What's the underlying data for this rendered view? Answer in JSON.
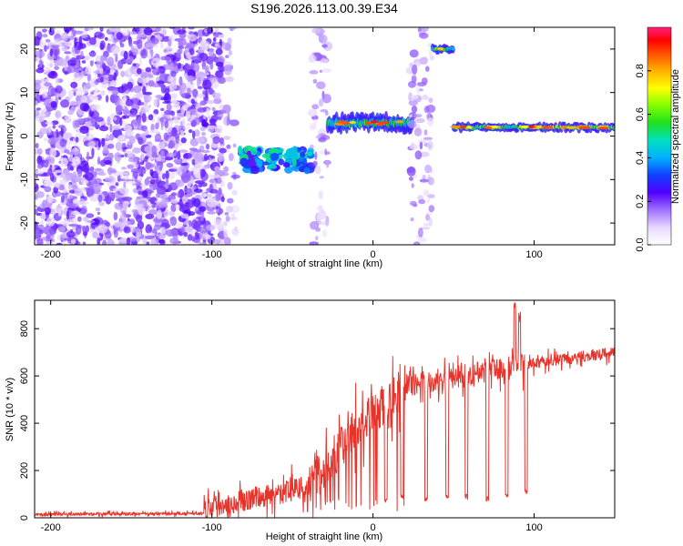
{
  "title": "S196.2026.113.00.39.E34",
  "chart_data": [
    {
      "type": "heatmap",
      "xlabel": "Height of straight line (km)",
      "ylabel": "Frequency (Hz)",
      "xlim": [
        -210,
        150
      ],
      "ylim": [
        -25,
        25
      ],
      "xticks": [
        -200,
        -100,
        0,
        100
      ],
      "yticks": [
        -20,
        -10,
        0,
        10,
        20
      ],
      "colorbar": {
        "label": "Normalized spectral amplitude",
        "range": [
          0,
          1
        ],
        "ticks": [
          "0.0",
          "0.2",
          "0.4",
          "0.6",
          "0.8"
        ]
      },
      "features": [
        {
          "name": "noise",
          "x": [
            -210,
            -93
          ],
          "y": [
            -25,
            25
          ],
          "amplitude": 0.12
        },
        {
          "name": "noise-band",
          "x": [
            -92,
            -85
          ],
          "y": [
            -25,
            25
          ],
          "amplitude": 0.1
        },
        {
          "name": "cluster",
          "x": [
            -83,
            -38
          ],
          "y": [
            -8,
            -3
          ],
          "amplitude": 0.45
        },
        {
          "name": "column",
          "x": [
            -38,
            -28
          ],
          "y": [
            -25,
            25
          ],
          "amplitude": 0.1
        },
        {
          "name": "line",
          "x": [
            -28,
            25
          ],
          "y": [
            1,
            5
          ],
          "amplitude": 0.55
        },
        {
          "name": "column",
          "x": [
            23,
            37
          ],
          "y": [
            -25,
            25
          ],
          "amplitude": 0.1
        },
        {
          "name": "line",
          "x": [
            37,
            50
          ],
          "y": [
            19,
            21
          ],
          "amplitude": 0.6
        },
        {
          "name": "line",
          "x": [
            50,
            150
          ],
          "y": [
            1,
            3
          ],
          "amplitude": 0.65
        }
      ]
    },
    {
      "type": "line",
      "xlabel": "Height of straight line (km)",
      "ylabel": "SNR (10 * v/v)",
      "xlim": [
        -210,
        150
      ],
      "ylim": [
        0,
        920
      ],
      "xticks": [
        -200,
        -100,
        0,
        100
      ],
      "yticks": [
        0,
        200,
        400,
        600,
        800
      ],
      "series": [
        {
          "name": "SNR",
          "color": "#e8332b",
          "segments": [
            {
              "x": [
                -210,
                -105
              ],
              "level": [
                15,
                18
              ],
              "noise": 10
            },
            {
              "x": [
                -105,
                -40
              ],
              "level": [
                40,
                130
              ],
              "noise": 80
            },
            {
              "x": [
                -40,
                -10
              ],
              "level": [
                130,
                380
              ],
              "noise": 150
            },
            {
              "x": [
                -10,
                20
              ],
              "level": [
                380,
                560
              ],
              "noise": 150
            },
            {
              "x": [
                20,
                95
              ],
              "level": [
                560,
                650
              ],
              "noise": 80
            },
            {
              "x": [
                95,
                150
              ],
              "level": [
                650,
                700
              ],
              "noise": 40
            }
          ],
          "dips": [
            {
              "x": 8,
              "value": 60
            },
            {
              "x": 18,
              "value": 80
            },
            {
              "x": 33,
              "value": 70
            },
            {
              "x": 46,
              "value": 80
            },
            {
              "x": 58,
              "value": 80
            },
            {
              "x": 71,
              "value": 70
            },
            {
              "x": 83,
              "value": 80
            },
            {
              "x": 95,
              "value": 100
            }
          ],
          "peaks": [
            {
              "x": 88,
              "value": 920
            },
            {
              "x": 91,
              "value": 880
            }
          ]
        }
      ]
    }
  ]
}
